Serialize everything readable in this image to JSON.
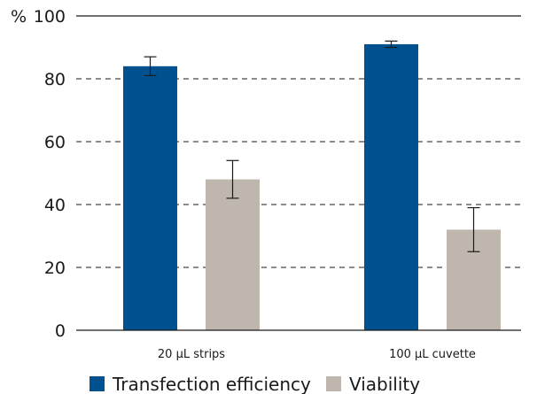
{
  "chart_data": {
    "type": "bar",
    "title": "",
    "xlabel": "",
    "ylabel": "%",
    "ylim": [
      0,
      100
    ],
    "yticks": [
      0,
      20,
      40,
      60,
      80,
      100
    ],
    "grid": true,
    "legend_position": "bottom",
    "categories": [
      "20 µL strips",
      "100 µL cuvette"
    ],
    "series": [
      {
        "name": "Transfection efficiency",
        "color": "#00518f",
        "values": [
          84,
          91
        ],
        "errors": [
          3,
          1
        ]
      },
      {
        "name": "Viability",
        "color": "#bfb7ad",
        "values": [
          48,
          32
        ],
        "errors": [
          6,
          7
        ]
      }
    ]
  }
}
